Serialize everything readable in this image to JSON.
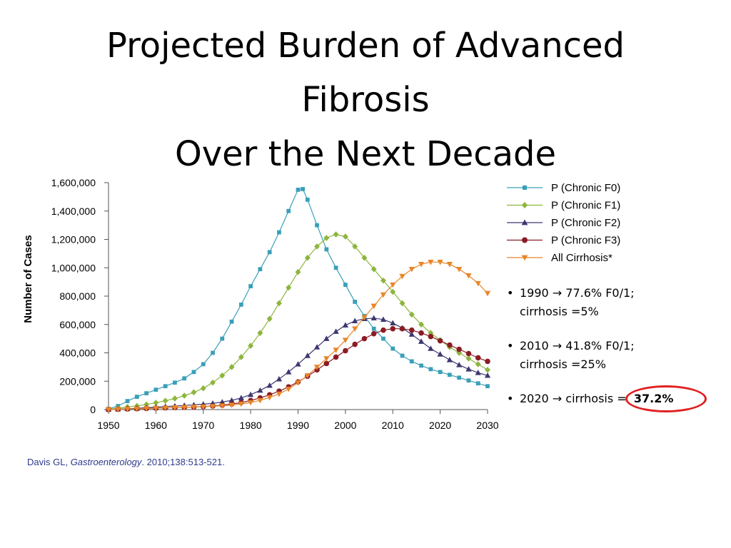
{
  "slide": {
    "title_lines": [
      "Projected Burden of Advanced",
      "Fibrosis",
      "Over the Next Decade"
    ],
    "bullets": [
      {
        "line1": "1990 → 77.6% F0/1;",
        "line2": "cirrhosis =5%"
      },
      {
        "line1": "2010 → 41.8% F0/1;",
        "line2": "cirrhosis =25%"
      },
      {
        "prefix": "2020 → cirrhosis =  ",
        "highlight": "37.2%"
      }
    ],
    "citation": {
      "author": "Davis GL, ",
      "journal": "Gastroenterology",
      "rest": ". 2010;138:513-521."
    },
    "highlight_color": "#e02020"
  },
  "chart_data": {
    "type": "line",
    "xlabel": "",
    "ylabel": "Number of Cases",
    "xlim": [
      1950,
      2030
    ],
    "ylim": [
      0,
      1600000
    ],
    "x_ticks": [
      "1950",
      "1960",
      "1970",
      "1980",
      "1990",
      "2000",
      "2010",
      "2020",
      "2030"
    ],
    "y_ticks": [
      "0",
      "200,000",
      "400,000",
      "600,000",
      "800,000",
      "1,000,000",
      "1,200,000",
      "1,400,000",
      "1,600,000"
    ],
    "legend_position": "top-right",
    "grid": false,
    "series": [
      {
        "name": "P (Chronic F0)",
        "color": "#3a9fb8",
        "marker": "square",
        "points": [
          [
            1950,
            5000
          ],
          [
            1952,
            25000
          ],
          [
            1954,
            60000
          ],
          [
            1956,
            90000
          ],
          [
            1958,
            115000
          ],
          [
            1960,
            140000
          ],
          [
            1962,
            165000
          ],
          [
            1964,
            190000
          ],
          [
            1966,
            220000
          ],
          [
            1968,
            265000
          ],
          [
            1970,
            320000
          ],
          [
            1972,
            400000
          ],
          [
            1974,
            500000
          ],
          [
            1976,
            620000
          ],
          [
            1978,
            740000
          ],
          [
            1980,
            870000
          ],
          [
            1982,
            990000
          ],
          [
            1984,
            1110000
          ],
          [
            1986,
            1250000
          ],
          [
            1988,
            1400000
          ],
          [
            1990,
            1550000
          ],
          [
            1991,
            1555000
          ],
          [
            1992,
            1480000
          ],
          [
            1994,
            1300000
          ],
          [
            1996,
            1130000
          ],
          [
            1998,
            1000000
          ],
          [
            2000,
            880000
          ],
          [
            2002,
            760000
          ],
          [
            2004,
            660000
          ],
          [
            2006,
            570000
          ],
          [
            2008,
            500000
          ],
          [
            2010,
            430000
          ],
          [
            2012,
            380000
          ],
          [
            2014,
            340000
          ],
          [
            2016,
            310000
          ],
          [
            2018,
            285000
          ],
          [
            2020,
            265000
          ],
          [
            2022,
            245000
          ],
          [
            2024,
            225000
          ],
          [
            2026,
            205000
          ],
          [
            2028,
            185000
          ],
          [
            2030,
            165000
          ]
        ]
      },
      {
        "name": "P (Chronic F1)",
        "color": "#8db53e",
        "marker": "diamond",
        "points": [
          [
            1950,
            2000
          ],
          [
            1952,
            10000
          ],
          [
            1954,
            18000
          ],
          [
            1956,
            26000
          ],
          [
            1958,
            36000
          ],
          [
            1960,
            48000
          ],
          [
            1962,
            62000
          ],
          [
            1964,
            78000
          ],
          [
            1966,
            98000
          ],
          [
            1968,
            122000
          ],
          [
            1970,
            150000
          ],
          [
            1972,
            190000
          ],
          [
            1974,
            240000
          ],
          [
            1976,
            300000
          ],
          [
            1978,
            370000
          ],
          [
            1980,
            450000
          ],
          [
            1982,
            540000
          ],
          [
            1984,
            640000
          ],
          [
            1986,
            750000
          ],
          [
            1988,
            860000
          ],
          [
            1990,
            970000
          ],
          [
            1992,
            1070000
          ],
          [
            1994,
            1150000
          ],
          [
            1996,
            1210000
          ],
          [
            1998,
            1235000
          ],
          [
            2000,
            1220000
          ],
          [
            2002,
            1150000
          ],
          [
            2004,
            1070000
          ],
          [
            2006,
            990000
          ],
          [
            2008,
            910000
          ],
          [
            2010,
            830000
          ],
          [
            2012,
            750000
          ],
          [
            2014,
            670000
          ],
          [
            2016,
            600000
          ],
          [
            2018,
            540000
          ],
          [
            2020,
            490000
          ],
          [
            2022,
            440000
          ],
          [
            2024,
            400000
          ],
          [
            2026,
            360000
          ],
          [
            2028,
            320000
          ],
          [
            2030,
            280000
          ]
        ]
      },
      {
        "name": "P (Chronic F2)",
        "color": "#3d3870",
        "marker": "triangle-up",
        "points": [
          [
            1950,
            1000
          ],
          [
            1952,
            3000
          ],
          [
            1954,
            6000
          ],
          [
            1956,
            9000
          ],
          [
            1958,
            13000
          ],
          [
            1960,
            17000
          ],
          [
            1962,
            21000
          ],
          [
            1964,
            25000
          ],
          [
            1966,
            29000
          ],
          [
            1968,
            33000
          ],
          [
            1970,
            38000
          ],
          [
            1972,
            44000
          ],
          [
            1974,
            53000
          ],
          [
            1976,
            65000
          ],
          [
            1978,
            82000
          ],
          [
            1980,
            105000
          ],
          [
            1982,
            135000
          ],
          [
            1984,
            170000
          ],
          [
            1986,
            215000
          ],
          [
            1988,
            265000
          ],
          [
            1990,
            320000
          ],
          [
            1992,
            380000
          ],
          [
            1994,
            440000
          ],
          [
            1996,
            500000
          ],
          [
            1998,
            550000
          ],
          [
            2000,
            595000
          ],
          [
            2002,
            625000
          ],
          [
            2004,
            640000
          ],
          [
            2006,
            645000
          ],
          [
            2008,
            635000
          ],
          [
            2010,
            610000
          ],
          [
            2012,
            575000
          ],
          [
            2014,
            530000
          ],
          [
            2016,
            480000
          ],
          [
            2018,
            430000
          ],
          [
            2020,
            390000
          ],
          [
            2022,
            350000
          ],
          [
            2024,
            315000
          ],
          [
            2026,
            285000
          ],
          [
            2028,
            260000
          ],
          [
            2030,
            240000
          ]
        ]
      },
      {
        "name": "P (Chronic F3)",
        "color": "#8b1c24",
        "marker": "circle",
        "points": [
          [
            1950,
            500
          ],
          [
            1952,
            2000
          ],
          [
            1954,
            4000
          ],
          [
            1956,
            6000
          ],
          [
            1958,
            8000
          ],
          [
            1960,
            10000
          ],
          [
            1962,
            12000
          ],
          [
            1964,
            14000
          ],
          [
            1966,
            16000
          ],
          [
            1968,
            18000
          ],
          [
            1970,
            21000
          ],
          [
            1972,
            25000
          ],
          [
            1974,
            31000
          ],
          [
            1976,
            39000
          ],
          [
            1978,
            50000
          ],
          [
            1980,
            64000
          ],
          [
            1982,
            82000
          ],
          [
            1984,
            104000
          ],
          [
            1986,
            130000
          ],
          [
            1988,
            160000
          ],
          [
            1990,
            195000
          ],
          [
            1992,
            235000
          ],
          [
            1994,
            280000
          ],
          [
            1996,
            325000
          ],
          [
            1998,
            370000
          ],
          [
            2000,
            415000
          ],
          [
            2002,
            460000
          ],
          [
            2004,
            500000
          ],
          [
            2006,
            535000
          ],
          [
            2008,
            560000
          ],
          [
            2010,
            570000
          ],
          [
            2012,
            570000
          ],
          [
            2014,
            560000
          ],
          [
            2016,
            540000
          ],
          [
            2018,
            515000
          ],
          [
            2020,
            485000
          ],
          [
            2022,
            455000
          ],
          [
            2024,
            425000
          ],
          [
            2026,
            395000
          ],
          [
            2028,
            365000
          ],
          [
            2030,
            340000
          ]
        ]
      },
      {
        "name": "All Cirrhosis*",
        "color": "#e8862a",
        "marker": "triangle-down",
        "points": [
          [
            1950,
            500
          ],
          [
            1952,
            2000
          ],
          [
            1954,
            4000
          ],
          [
            1956,
            6000
          ],
          [
            1958,
            8000
          ],
          [
            1960,
            10000
          ],
          [
            1962,
            12000
          ],
          [
            1964,
            14000
          ],
          [
            1966,
            16000
          ],
          [
            1968,
            18000
          ],
          [
            1970,
            20000
          ],
          [
            1972,
            23000
          ],
          [
            1974,
            27000
          ],
          [
            1976,
            32000
          ],
          [
            1978,
            40000
          ],
          [
            1980,
            50000
          ],
          [
            1982,
            65000
          ],
          [
            1984,
            85000
          ],
          [
            1986,
            110000
          ],
          [
            1988,
            145000
          ],
          [
            1990,
            190000
          ],
          [
            1992,
            240000
          ],
          [
            1994,
            300000
          ],
          [
            1996,
            360000
          ],
          [
            1998,
            420000
          ],
          [
            2000,
            490000
          ],
          [
            2002,
            570000
          ],
          [
            2004,
            650000
          ],
          [
            2006,
            730000
          ],
          [
            2008,
            810000
          ],
          [
            2010,
            880000
          ],
          [
            2012,
            940000
          ],
          [
            2014,
            990000
          ],
          [
            2016,
            1025000
          ],
          [
            2018,
            1040000
          ],
          [
            2020,
            1040000
          ],
          [
            2022,
            1025000
          ],
          [
            2024,
            990000
          ],
          [
            2026,
            945000
          ],
          [
            2028,
            890000
          ],
          [
            2030,
            820000
          ]
        ]
      }
    ]
  }
}
